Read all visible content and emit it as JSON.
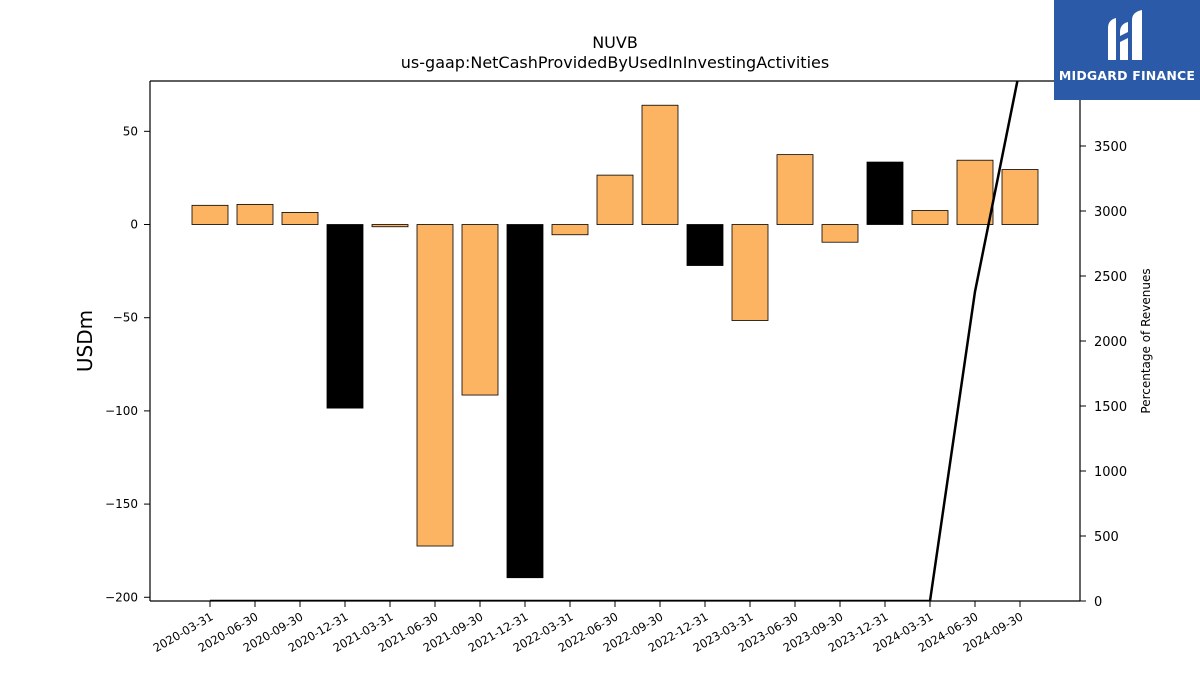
{
  "brand": {
    "name": "MIDGARD FINANCE",
    "bg_color": "#2a5aa8"
  },
  "chart_data": {
    "type": "bar",
    "title": "NUVB",
    "subtitle": "us-gaap:NetCashProvidedByUsedInInvestingActivities",
    "ylabel": "USDm",
    "y2label": "Percentage of Revenues",
    "ylim": [
      -202,
      77
    ],
    "y2lim": [
      0,
      4000
    ],
    "yticks": [
      -200,
      -150,
      -100,
      -50,
      0,
      50
    ],
    "y2ticks": [
      0,
      500,
      1000,
      1500,
      2000,
      2500,
      3000,
      3500
    ],
    "categories": [
      "2020-03-31",
      "2020-06-30",
      "2020-09-30",
      "2020-12-31",
      "2021-03-31",
      "2021-06-30",
      "2021-09-30",
      "2021-12-31",
      "2022-03-31",
      "2022-06-30",
      "2022-09-30",
      "2022-12-31",
      "2023-03-31",
      "2023-06-30",
      "2023-09-30",
      "2023-12-31",
      "2024-03-31",
      "2024-06-30",
      "2024-09-30"
    ],
    "series": [
      {
        "type": "bar",
        "values": [
          10.3,
          10.8,
          6.5,
          -98.5,
          -1.2,
          -172.5,
          -91.5,
          -189.5,
          -5.5,
          26.5,
          64.0,
          -22.0,
          -51.5,
          37.5,
          -9.5,
          33.5,
          7.5,
          34.5,
          29.5
        ],
        "colors": [
          "#fdb462",
          "#fdb462",
          "#fdb462",
          "#000000",
          "#fdb462",
          "#fdb462",
          "#fdb462",
          "#000000",
          "#fdb462",
          "#fdb462",
          "#fdb462",
          "#000000",
          "#fdb462",
          "#fdb462",
          "#fdb462",
          "#000000",
          "#fdb462",
          "#fdb462",
          "#fdb462"
        ]
      },
      {
        "type": "line",
        "axis": "right",
        "x_start_index": 0,
        "values": [
          0,
          0,
          0,
          0,
          0,
          0,
          0,
          0,
          0,
          0,
          0,
          0,
          0,
          0,
          0,
          0,
          0,
          2380,
          4100
        ],
        "color": "#000000"
      }
    ],
    "grid": false,
    "legend": "none"
  }
}
